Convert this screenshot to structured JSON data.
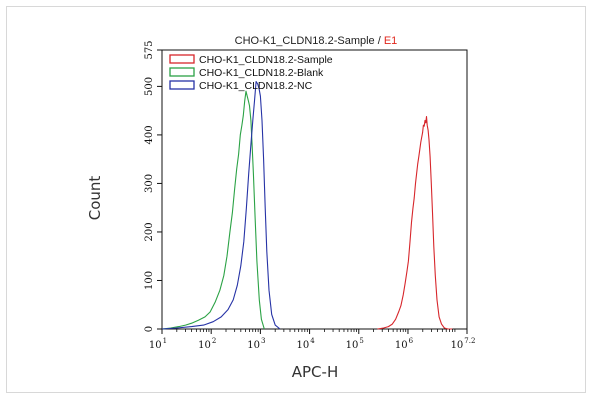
{
  "chart_data": {
    "type": "line",
    "title": "CHO-K1_CLDN18.2-Sample / ",
    "title_suffix": "E1",
    "title_suffix_color": "#e0261c",
    "xlabel": "APC-H",
    "ylabel": "Count",
    "x_scale": "log",
    "xlim": [
      10,
      15848931.92
    ],
    "ylim": [
      0,
      575
    ],
    "x_tick_labels": [
      {
        "base": "10",
        "exp": "1"
      },
      {
        "base": "10",
        "exp": "2"
      },
      {
        "base": "10",
        "exp": "3"
      },
      {
        "base": "10",
        "exp": "4"
      },
      {
        "base": "10",
        "exp": "5"
      },
      {
        "base": "10",
        "exp": "6"
      },
      {
        "base": "10",
        "exp": "7.2"
      }
    ],
    "y_ticks": [
      "0",
      "100",
      "200",
      "300",
      "400",
      "500",
      "575"
    ],
    "grid": false,
    "legend_position": "top-left",
    "series": [
      {
        "name": "CHO-K1_CLDN18.2-Sample",
        "color": "#d7262b",
        "x": [
          240000,
          320000,
          400000,
          480000,
          560000,
          650000,
          720000,
          800000,
          880000,
          950000,
          1020000,
          1100000,
          1180000,
          1260000,
          1340000,
          1420000,
          1500000,
          1580000,
          1660000,
          1740000,
          1820000,
          1900000,
          1980000,
          2060000,
          2140000,
          2220000,
          2300000,
          2380000,
          2460000,
          2560000,
          2680000,
          2820000,
          2980000,
          3150000,
          3350000,
          3600000,
          3900000,
          4300000,
          4800000,
          5500000,
          6500000,
          8000000
        ],
        "y": [
          0,
          2,
          5,
          10,
          20,
          36,
          48,
          70,
          95,
          118,
          140,
          180,
          220,
          248,
          270,
          300,
          320,
          340,
          355,
          370,
          385,
          395,
          405,
          420,
          418,
          430,
          425,
          438,
          420,
          410,
          390,
          355,
          300,
          240,
          170,
          110,
          60,
          25,
          10,
          2,
          0,
          0
        ]
      },
      {
        "name": "CHO-K1_CLDN18.2-Blank",
        "color": "#2ba245",
        "x": [
          10,
          15,
          22,
          30,
          40,
          55,
          75,
          95,
          120,
          150,
          180,
          210,
          240,
          270,
          300,
          330,
          360,
          390,
          420,
          450,
          480,
          510,
          540,
          570,
          600,
          640,
          680,
          720,
          780,
          850,
          950,
          1050,
          1200
        ],
        "y": [
          0,
          2,
          5,
          8,
          12,
          18,
          25,
          35,
          55,
          80,
          110,
          150,
          200,
          240,
          290,
          330,
          360,
          400,
          420,
          440,
          470,
          490,
          480,
          470,
          460,
          430,
          380,
          320,
          230,
          140,
          60,
          20,
          0
        ]
      },
      {
        "name": "CHO-K1_CLDN18.2-NC",
        "color": "#2633a6",
        "x": [
          10,
          20,
          40,
          70,
          110,
          160,
          220,
          280,
          340,
          400,
          460,
          520,
          580,
          640,
          700,
          760,
          820,
          880,
          940,
          1000,
          1080,
          1160,
          1250,
          1350,
          1500,
          1700,
          2000,
          2500
        ],
        "y": [
          0,
          2,
          5,
          8,
          15,
          25,
          40,
          60,
          90,
          130,
          180,
          250,
          320,
          380,
          430,
          470,
          510,
          505,
          495,
          480,
          430,
          350,
          250,
          160,
          80,
          30,
          8,
          0
        ]
      }
    ]
  }
}
